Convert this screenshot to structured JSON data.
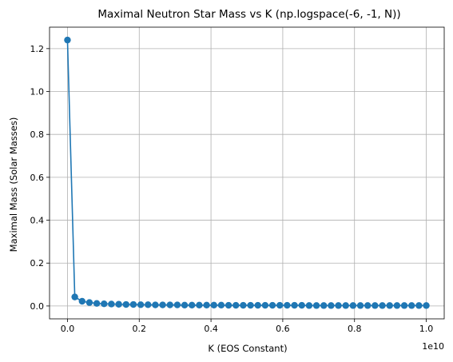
{
  "chart_data": {
    "type": "line",
    "title": "Maximal Neutron Star Mass vs K (np.logspace(-6, -1, N))",
    "xlabel": "K (EOS Constant)",
    "ylabel": "Maximal Mass (Solar Masses)",
    "x_offset_label": "1e10",
    "x_ticks": [
      0.0,
      0.2,
      0.4,
      0.6,
      0.8,
      1.0
    ],
    "x_tick_labels": [
      "0.0",
      "0.2",
      "0.4",
      "0.6",
      "0.8",
      "1.0"
    ],
    "y_ticks": [
      0.0,
      0.2,
      0.4,
      0.6,
      0.8,
      1.0,
      1.2
    ],
    "y_tick_labels": [
      "0.0",
      "0.2",
      "0.4",
      "0.6",
      "0.8",
      "1.0",
      "1.2"
    ],
    "xlim": [
      -0.05,
      1.05
    ],
    "ylim": [
      -0.06,
      1.3
    ],
    "grid": true,
    "marker": "circle",
    "color": "#1f77b4",
    "series": [
      {
        "x": [
          0.0,
          0.0204,
          0.0408,
          0.0612,
          0.0816,
          0.102,
          0.1224,
          0.1429,
          0.1633,
          0.1837,
          0.2041,
          0.2245,
          0.2449,
          0.2653,
          0.2857,
          0.3061,
          0.3265,
          0.3469,
          0.3673,
          0.3878,
          0.4082,
          0.4286,
          0.449,
          0.4694,
          0.4898,
          0.5102,
          0.5306,
          0.551,
          0.5714,
          0.5918,
          0.6122,
          0.6327,
          0.6531,
          0.6735,
          0.6939,
          0.7143,
          0.7347,
          0.7551,
          0.7755,
          0.7959,
          0.8163,
          0.8367,
          0.8571,
          0.8776,
          0.898,
          0.9184,
          0.9388,
          0.9592,
          0.9796,
          1.0
        ],
        "y": [
          1.24,
          0.042,
          0.022,
          0.016,
          0.012,
          0.01,
          0.009,
          0.008,
          0.007,
          0.007,
          0.006,
          0.006,
          0.005,
          0.005,
          0.005,
          0.005,
          0.004,
          0.004,
          0.004,
          0.004,
          0.004,
          0.004,
          0.003,
          0.003,
          0.003,
          0.003,
          0.003,
          0.003,
          0.003,
          0.003,
          0.003,
          0.003,
          0.003,
          0.002,
          0.002,
          0.002,
          0.002,
          0.002,
          0.002,
          0.002,
          0.002,
          0.002,
          0.002,
          0.002,
          0.002,
          0.002,
          0.002,
          0.002,
          0.002,
          0.002
        ]
      }
    ]
  }
}
